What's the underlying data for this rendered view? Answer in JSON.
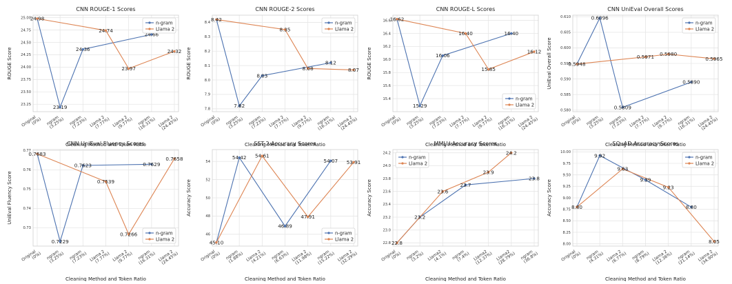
{
  "chart_data": [
    {
      "type": "line",
      "title": "CNN ROUGE-1 Scores",
      "xlabel": "Cleaning Method and Token Ratio",
      "ylabel": "ROUGE Score",
      "ylim": [
        23.1,
        25.05
      ],
      "yticks": [
        23.25,
        23.5,
        23.75,
        24.0,
        24.25,
        24.5,
        24.75,
        25.0
      ],
      "ytick_decimals": 2,
      "label_decimals": 2,
      "legend": "top-right",
      "categories": [
        "Original\n(0%)",
        "ngram\n(3.25%)",
        "ngram\n(7.23%)",
        "Llama 2\n(7.77%)",
        "Llama 2\n(9.77%)",
        "ngram\n(16.31%)",
        "Llama 2\n(24.45%)"
      ],
      "series": [
        {
          "name": "n-gram",
          "color": "#4c72b0",
          "points": [
            [
              0,
              24.98
            ],
            [
              1,
              23.19
            ],
            [
              2,
              24.36
            ],
            [
              5,
              24.66
            ]
          ]
        },
        {
          "name": "Llama 2",
          "color": "#dd8452",
          "points": [
            [
              0,
              24.98
            ],
            [
              3,
              24.74
            ],
            [
              4,
              23.97
            ],
            [
              6,
              24.32
            ]
          ]
        }
      ],
      "labels": [
        [
          0,
          24.98
        ],
        [
          1,
          23.19
        ],
        [
          2,
          24.36
        ],
        [
          3,
          24.74
        ],
        [
          4,
          23.97
        ],
        [
          5,
          24.66
        ],
        [
          6,
          24.32
        ]
      ]
    },
    {
      "type": "line",
      "title": "CNN ROUGE-2 Scores",
      "xlabel": "Cleaning Method and Token Ratio",
      "ylabel": "ROUGE Score",
      "ylim": [
        7.78,
        8.45
      ],
      "yticks": [
        7.8,
        7.9,
        8.0,
        8.1,
        8.2,
        8.3,
        8.4
      ],
      "ytick_decimals": 1,
      "label_decimals": 2,
      "legend": "top-right",
      "categories": [
        "Original\n(0%)",
        "ngram\n(3.25%)",
        "ngram\n(7.23%)",
        "Llama 2\n(7.77%)",
        "Llama 2\n(9.77%)",
        "ngram\n(16.31%)",
        "Llama 2\n(24.45%)"
      ],
      "series": [
        {
          "name": "n-gram",
          "color": "#4c72b0",
          "points": [
            [
              0,
              8.42
            ],
            [
              1,
              7.82
            ],
            [
              2,
              8.03
            ],
            [
              5,
              8.12
            ]
          ]
        },
        {
          "name": "Llama 2",
          "color": "#dd8452",
          "points": [
            [
              0,
              8.42
            ],
            [
              3,
              8.35
            ],
            [
              4,
              8.08
            ],
            [
              6,
              8.07
            ]
          ]
        }
      ],
      "labels": [
        [
          0,
          8.42
        ],
        [
          1,
          7.82
        ],
        [
          2,
          8.03
        ],
        [
          3,
          8.35
        ],
        [
          4,
          8.08
        ],
        [
          5,
          8.12
        ],
        [
          6,
          8.07
        ]
      ]
    },
    {
      "type": "line",
      "title": "CNN ROUGE-L Scores",
      "xlabel": "Cleaning Method and Token Ratio",
      "ylabel": "ROUGE Score",
      "ylim": [
        15.2,
        16.68
      ],
      "yticks": [
        15.4,
        15.6,
        15.8,
        16.0,
        16.2,
        16.4,
        16.6
      ],
      "ytick_decimals": 1,
      "label_decimals": 2,
      "legend": "bottom-right",
      "categories": [
        "Original\n(0%)",
        "ngram\n(3.25%)",
        "ngram\n(7.23%)",
        "Llama 2\n(7.77%)",
        "Llama 2\n(9.77%)",
        "ngram\n(16.31%)",
        "Llama 2\n(24.45%)"
      ],
      "series": [
        {
          "name": "n-gram",
          "color": "#4c72b0",
          "points": [
            [
              0,
              16.62
            ],
            [
              1,
              15.29
            ],
            [
              2,
              16.06
            ],
            [
              5,
              16.4
            ]
          ]
        },
        {
          "name": "Llama 2",
          "color": "#dd8452",
          "points": [
            [
              0,
              16.62
            ],
            [
              3,
              16.4
            ],
            [
              4,
              15.85
            ],
            [
              6,
              16.12
            ]
          ]
        }
      ],
      "labels": [
        [
          0,
          16.62
        ],
        [
          1,
          15.29
        ],
        [
          2,
          16.06
        ],
        [
          3,
          16.4
        ],
        [
          4,
          15.85
        ],
        [
          5,
          16.4
        ],
        [
          6,
          16.12
        ]
      ]
    },
    {
      "type": "line",
      "title": "CNN UniEval Overall Scores",
      "xlabel": "Cleaning Method and Token Ratio",
      "ylabel": "UniEval Overall Score",
      "ylim": [
        0.5795,
        0.6105
      ],
      "yticks": [
        0.58,
        0.585,
        0.59,
        0.595,
        0.6,
        0.605,
        0.61
      ],
      "ytick_decimals": 3,
      "label_decimals": 4,
      "legend": "top-right",
      "categories": [
        "Original\n(0%)",
        "ngram\n(3.25%)",
        "ngram\n(7.23%)",
        "Llama 2\n(7.77%)",
        "Llama 2\n(9.77%)",
        "ngram\n(16.31%)",
        "Llama 2\n(24.45%)"
      ],
      "series": [
        {
          "name": "n-gram",
          "color": "#4c72b0",
          "points": [
            [
              0,
              0.5948
            ],
            [
              1,
              0.6096
            ],
            [
              2,
              0.5809
            ],
            [
              5,
              0.589
            ]
          ]
        },
        {
          "name": "Llama 2",
          "color": "#dd8452",
          "points": [
            [
              0,
              0.5948
            ],
            [
              3,
              0.5971
            ],
            [
              4,
              0.598
            ],
            [
              6,
              0.5965
            ]
          ]
        }
      ],
      "labels": [
        [
          0,
          0.5948
        ],
        [
          1,
          0.6096
        ],
        [
          2,
          0.5809
        ],
        [
          3,
          0.5971
        ],
        [
          4,
          0.598
        ],
        [
          5,
          0.589
        ],
        [
          6,
          0.5965
        ]
      ]
    },
    {
      "type": "line",
      "title": "CNN UniEval Fluency Scores",
      "xlabel": "Cleaning Method and Token Ratio",
      "ylabel": "UniEval Fluency Score",
      "ylim": [
        0.7205,
        0.7705
      ],
      "yticks": [
        0.73,
        0.74,
        0.75,
        0.76,
        0.77
      ],
      "ytick_decimals": 2,
      "label_decimals": 4,
      "legend": "bottom-right",
      "categories": [
        "Original\n(0%)",
        "ngram\n(3.25%)",
        "ngram\n(7.23%)",
        "Llama 2\n(7.77%)",
        "Llama 2\n(9.77%)",
        "ngram\n(16.31%)",
        "Llama 2\n(24.45%)"
      ],
      "series": [
        {
          "name": "n-gram",
          "color": "#4c72b0",
          "points": [
            [
              0,
              0.7683
            ],
            [
              1,
              0.7229
            ],
            [
              2,
              0.7623
            ],
            [
              5,
              0.7629
            ]
          ]
        },
        {
          "name": "Llama 2",
          "color": "#dd8452",
          "points": [
            [
              0,
              0.7683
            ],
            [
              3,
              0.7539
            ],
            [
              4,
              0.7266
            ],
            [
              6,
              0.7658
            ]
          ]
        }
      ],
      "labels": [
        [
          0,
          0.7683
        ],
        [
          1,
          0.7229
        ],
        [
          2,
          0.7623
        ],
        [
          3,
          0.7539
        ],
        [
          4,
          0.7266
        ],
        [
          5,
          0.7629
        ],
        [
          6,
          0.7658
        ]
      ]
    },
    {
      "type": "line",
      "title": "SST-2 Accuracy Scores",
      "xlabel": "Cleaning Method and Token Ratio",
      "ylabel": "Accuracy Score",
      "ylim": [
        44.7,
        55.3
      ],
      "yticks": [
        46,
        48,
        50,
        52,
        54
      ],
      "ytick_decimals": 0,
      "label_decimals": 2,
      "legend": "bottom-right",
      "categories": [
        "Original\n(0%)",
        "ngram\n(1.88%)",
        "Llama 2\n(4.21%)",
        "ngram\n(6.63%)",
        "Llama 2\n(11.98%)",
        "ngram\n(15.22%)",
        "Llama 2\n(32.29%)"
      ],
      "series": [
        {
          "name": "n-gram",
          "color": "#4c72b0",
          "points": [
            [
              0,
              45.1
            ],
            [
              1,
              54.42
            ],
            [
              3,
              46.89
            ],
            [
              5,
              54.07
            ]
          ]
        },
        {
          "name": "Llama 2",
          "color": "#dd8452",
          "points": [
            [
              0,
              45.1
            ],
            [
              2,
              54.61
            ],
            [
              4,
              47.91
            ],
            [
              6,
              53.91
            ]
          ]
        }
      ],
      "labels": [
        [
          0,
          45.1
        ],
        [
          1,
          54.42
        ],
        [
          2,
          54.61
        ],
        [
          3,
          46.89
        ],
        [
          4,
          47.91
        ],
        [
          5,
          54.07
        ],
        [
          6,
          53.91
        ]
      ]
    },
    {
      "type": "line",
      "title": "MMLU Accuracy Scores",
      "xlabel": "Cleaning Method and Token Ratio",
      "ylabel": "Accuracy Score",
      "ylim": [
        22.75,
        24.25
      ],
      "yticks": [
        22.8,
        23.0,
        23.2,
        23.4,
        23.6,
        23.8,
        24.0,
        24.2
      ],
      "ytick_decimals": 1,
      "label_decimals": 1,
      "legend": "top-left",
      "categories": [
        "Original\n(0%)",
        "ngram\n(3.2%)",
        "Llama2\n(4.1%)",
        "ngram\n(7.4%)",
        "Llama2\n(12.37%)",
        "Llama2\n(28.79%)",
        "ngram\n(36.8%)"
      ],
      "series": [
        {
          "name": "n-gram",
          "color": "#4c72b0",
          "points": [
            [
              0,
              22.8
            ],
            [
              1,
              23.2
            ],
            [
              3,
              23.7
            ],
            [
              6,
              23.8
            ]
          ]
        },
        {
          "name": "Llama 2",
          "color": "#dd8452",
          "points": [
            [
              0,
              22.8
            ],
            [
              2,
              23.6
            ],
            [
              4,
              23.9
            ],
            [
              5,
              24.2
            ]
          ]
        }
      ],
      "labels": [
        [
          0,
          22.8
        ],
        [
          1,
          23.2
        ],
        [
          2,
          23.6
        ],
        [
          3,
          23.7
        ],
        [
          4,
          23.9
        ],
        [
          5,
          24.2
        ],
        [
          6,
          23.8
        ]
      ]
    },
    {
      "type": "line",
      "title": "SQuAD Accuracy Scores",
      "xlabel": "Cleaning Method and Token Ratio",
      "ylabel": "Accuracy Score",
      "ylim": [
        7.95,
        10.05
      ],
      "yticks": [
        8.0,
        8.25,
        8.5,
        8.75,
        9.0,
        9.25,
        9.5,
        9.75,
        10.0
      ],
      "ytick_decimals": 2,
      "label_decimals": 2,
      "legend": "top-right",
      "categories": [
        "Original\n(0%)",
        "ngram\n(4.31%)",
        "Llama 2\n(6.77%)",
        "ngram\n(8.79%)",
        "Llama 2\n(12.36%)",
        "ngram\n(21.14%)",
        "Llama 2\n(34.90%)"
      ],
      "series": [
        {
          "name": "n-gram",
          "color": "#4c72b0",
          "points": [
            [
              0,
              8.8
            ],
            [
              1,
              9.92
            ],
            [
              3,
              9.39
            ],
            [
              5,
              8.8
            ]
          ]
        },
        {
          "name": "Llama 2",
          "color": "#dd8452",
          "points": [
            [
              0,
              8.8
            ],
            [
              2,
              9.63
            ],
            [
              4,
              9.23
            ],
            [
              6,
              8.05
            ]
          ]
        }
      ],
      "labels": [
        [
          0,
          8.8
        ],
        [
          1,
          9.92
        ],
        [
          2,
          9.63
        ],
        [
          3,
          9.39
        ],
        [
          4,
          9.23
        ],
        [
          5,
          8.8
        ],
        [
          6,
          8.05
        ]
      ]
    }
  ]
}
